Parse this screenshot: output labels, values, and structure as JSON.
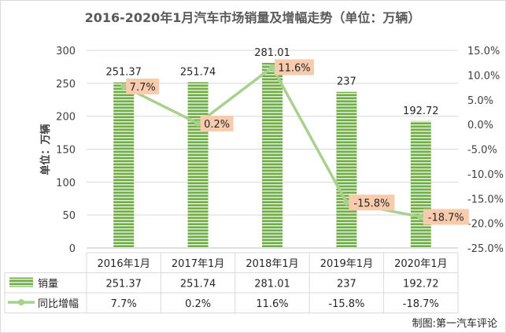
{
  "chart_data": {
    "type": "bar",
    "title": "2016-2020年1月汽车市场销量及增幅走势（单位：万辆）",
    "ylabel_left": "单位：万辆",
    "categories": [
      "2016年1月",
      "2017年1月",
      "2018年1月",
      "2019年1月",
      "2020年1月"
    ],
    "y_left_ticks": [
      0,
      50,
      100,
      150,
      200,
      250,
      300
    ],
    "y_right_ticks": [
      "-25.0%",
      "-20.0%",
      "-15.0%",
      "-10.0%",
      "-5.0%",
      "0.0%",
      "5.0%",
      "10.0%",
      "15.0%"
    ],
    "ylim_left": [
      0,
      300
    ],
    "ylim_right": [
      -25,
      15
    ],
    "series": [
      {
        "name": "销量",
        "kind": "bar",
        "axis": "left",
        "values": [
          251.37,
          251.74,
          281.01,
          237,
          192.72
        ],
        "labels": [
          "251.37",
          "251.74",
          "281.01",
          "237",
          "192.72"
        ],
        "color": "#70ad47"
      },
      {
        "name": "同比增幅",
        "kind": "line",
        "axis": "right",
        "values": [
          7.7,
          0.2,
          11.6,
          -15.8,
          -18.7
        ],
        "labels": [
          "7.7%",
          "0.2%",
          "11.6%",
          "-15.8%",
          "-18.7%"
        ],
        "color": "#a9d18e",
        "label_bg": "#f8cbad"
      }
    ],
    "grid": true,
    "legend": "data-table",
    "source": "制图:第一汽车评论"
  }
}
